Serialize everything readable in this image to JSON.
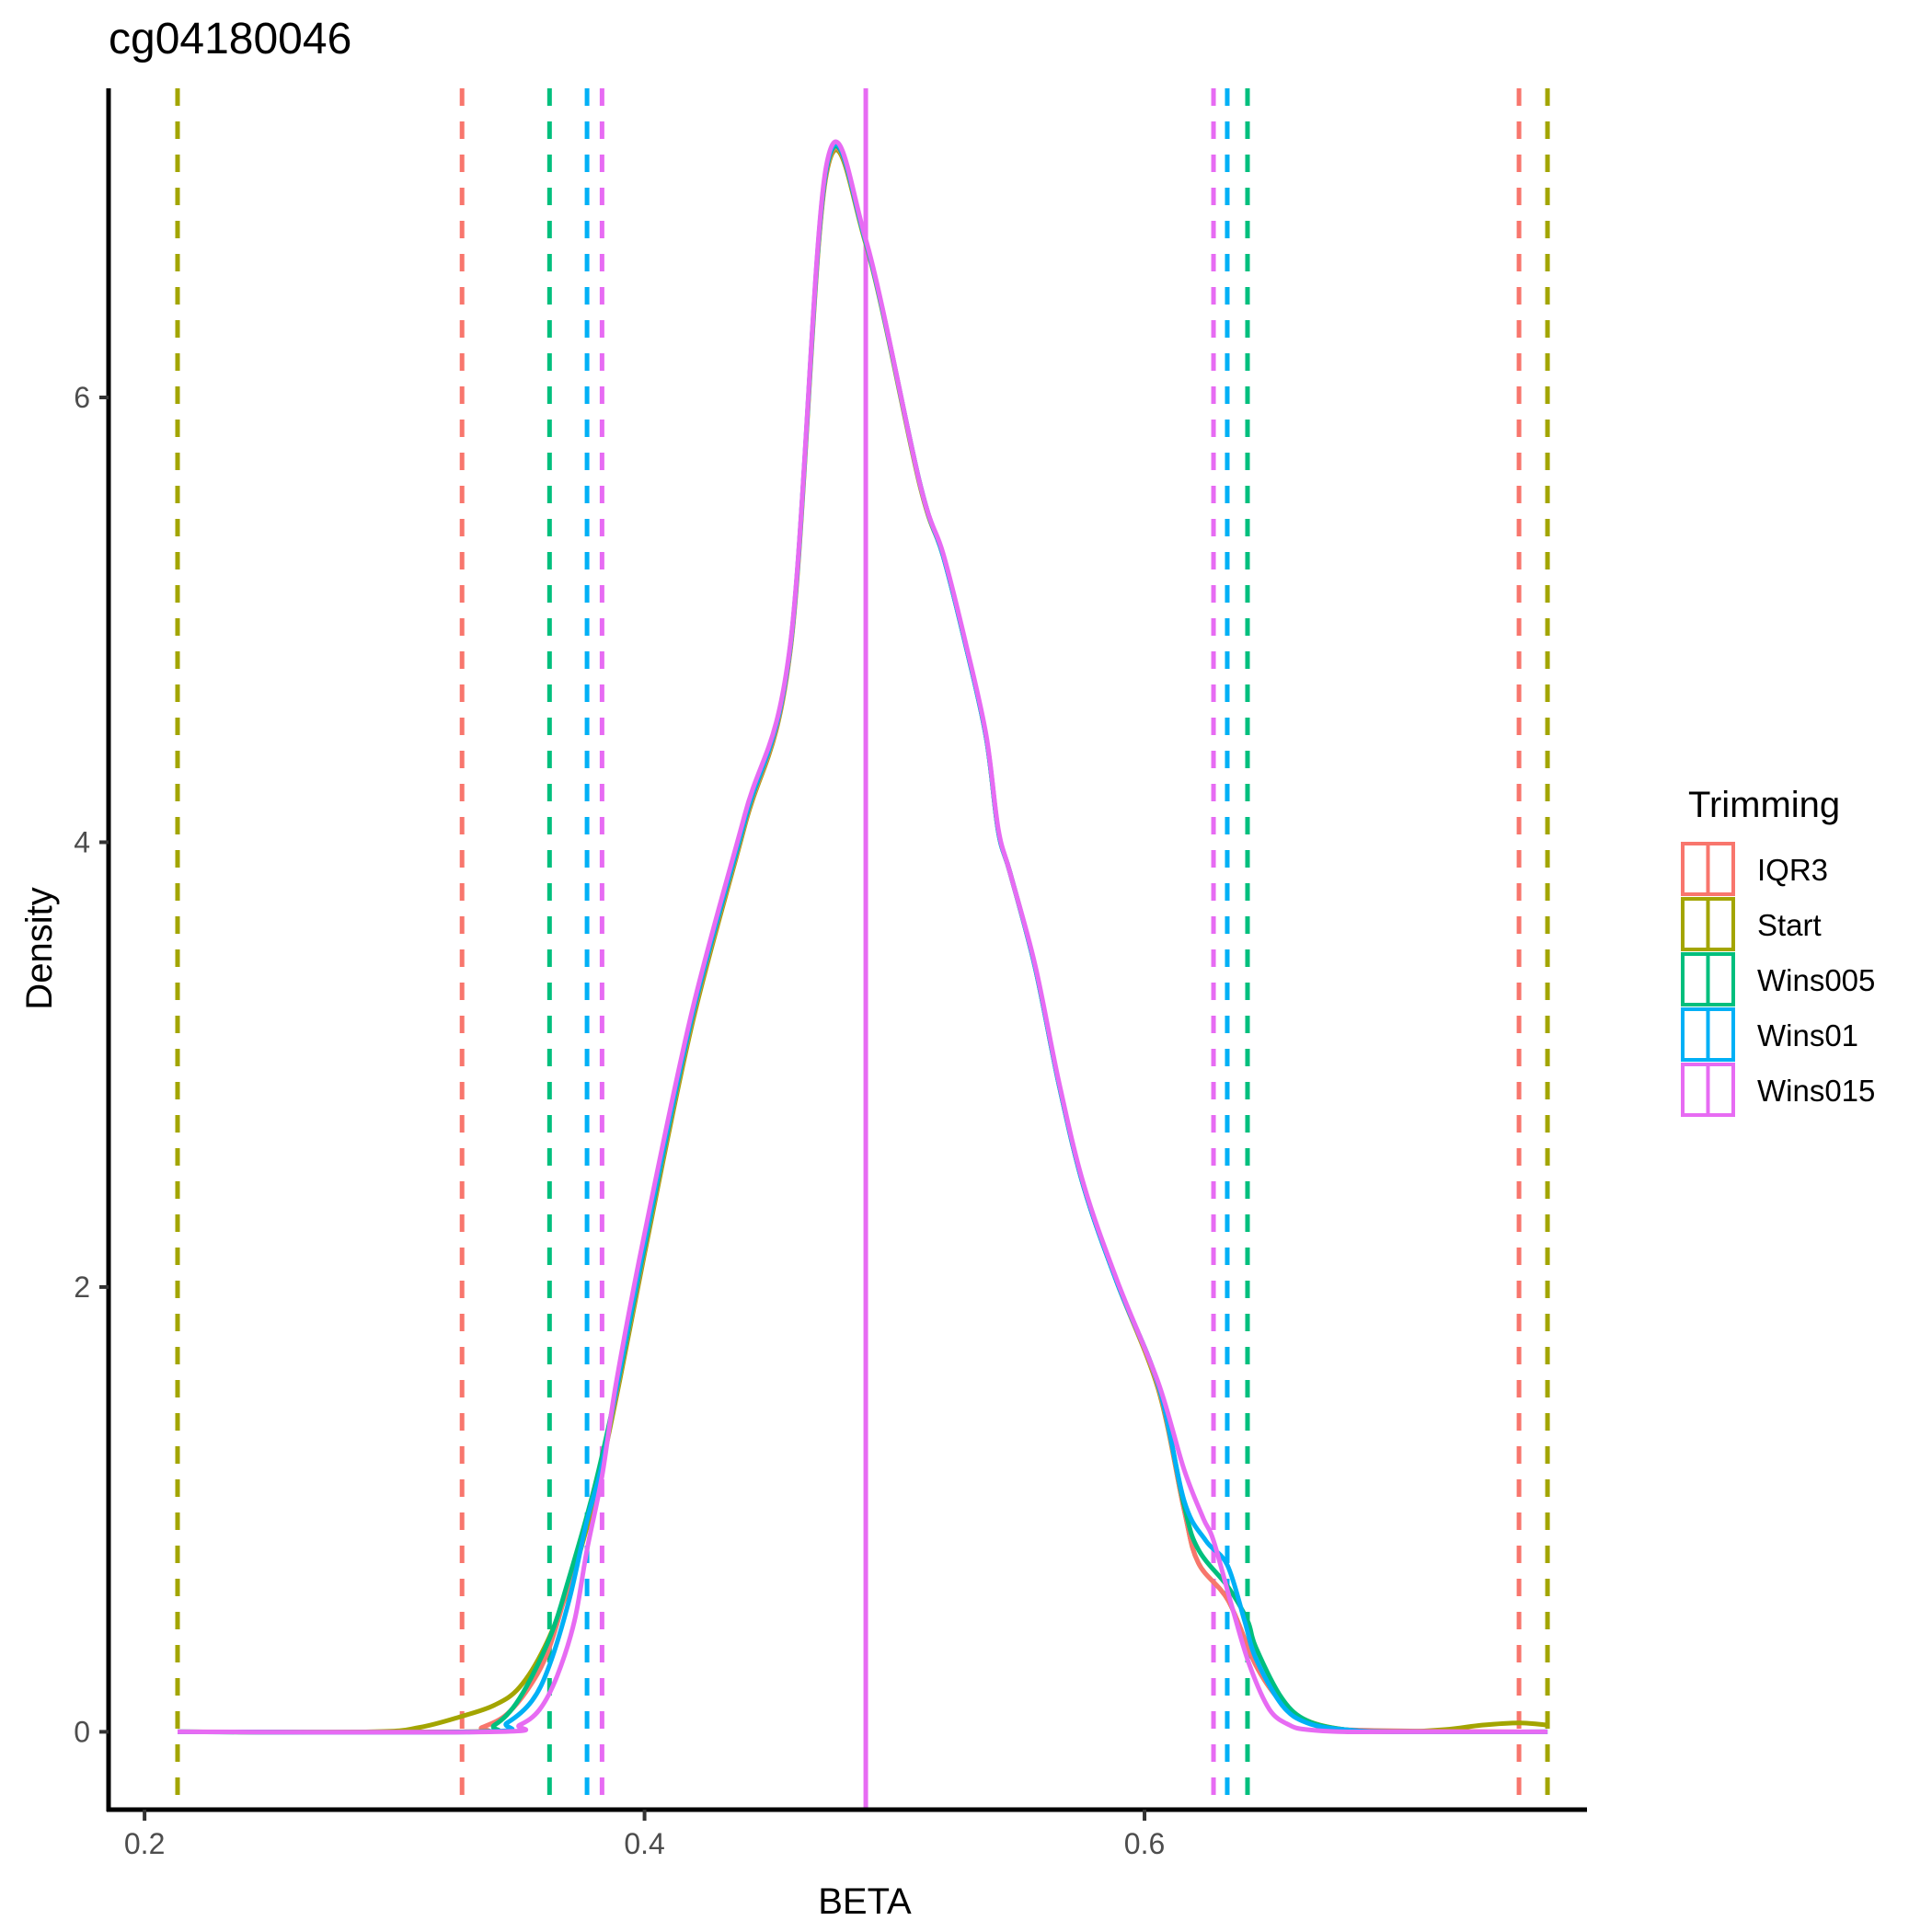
{
  "chart_data": {
    "type": "line",
    "subtype": "density",
    "title": "cg04180046",
    "xlabel": "BETA",
    "ylabel": "Density",
    "xlim": [
      0.1856,
      0.777
    ],
    "ylim": [
      -0.35,
      7.39
    ],
    "x_ticks": [
      0.2,
      0.4,
      0.6
    ],
    "x_tick_labels": [
      "0.2",
      "0.4",
      "0.6"
    ],
    "y_ticks": [
      0,
      2,
      4,
      6
    ],
    "y_tick_labels": [
      "0",
      "2",
      "4",
      "6"
    ],
    "grid": false,
    "legend": {
      "title": "Trimming",
      "position": "right",
      "entries": [
        "IQR3",
        "Start",
        "Wins005",
        "Wins01",
        "Wins015"
      ]
    },
    "colors": {
      "IQR3": "#F8766D",
      "Start": "#A3A500",
      "Wins005": "#00BF7D",
      "Wins01": "#00B0F6",
      "Wins015": "#E76BF3"
    },
    "series": [
      {
        "name": "Start",
        "x": [
          0.2132,
          0.29,
          0.31,
          0.327,
          0.34,
          0.35,
          0.36,
          0.37,
          0.38,
          0.389,
          0.4,
          0.419,
          0.44,
          0.4583,
          0.4727,
          0.4885,
          0.51,
          0.5194,
          0.5286,
          0.5367,
          0.5415,
          0.5463,
          0.5562,
          0.5658,
          0.5757,
          0.589,
          0.6055,
          0.6158,
          0.6215,
          0.6335,
          0.6445,
          0.655,
          0.665,
          0.68,
          0.7,
          0.72,
          0.735,
          0.75,
          0.7612
        ],
        "y": [
          0,
          0,
          0.02,
          0.07,
          0.12,
          0.2,
          0.38,
          0.66,
          1.05,
          1.52,
          2.15,
          3.18,
          4.07,
          4.86,
          7.0,
          6.69,
          5.61,
          5.29,
          4.88,
          4.47,
          4.05,
          3.86,
          3.44,
          2.91,
          2.45,
          2.02,
          1.54,
          1.0,
          0.76,
          0.59,
          0.3,
          0.13,
          0.05,
          0.01,
          0,
          0.01,
          0.03,
          0.04,
          0.03
        ]
      },
      {
        "name": "IQR3",
        "x": [
          0.2132,
          0.327,
          0.335,
          0.345,
          0.355,
          0.362,
          0.37,
          0.38,
          0.389,
          0.4,
          0.419,
          0.44,
          0.4583,
          0.4727,
          0.4885,
          0.51,
          0.5194,
          0.5286,
          0.5367,
          0.5415,
          0.5463,
          0.5562,
          0.5658,
          0.5757,
          0.589,
          0.6055,
          0.6158,
          0.6215,
          0.6335,
          0.6445,
          0.655,
          0.665,
          0.68,
          0.7498
        ],
        "y": [
          0,
          0,
          0.02,
          0.08,
          0.22,
          0.38,
          0.68,
          1.08,
          1.54,
          2.17,
          3.2,
          4.08,
          4.87,
          7.01,
          6.7,
          5.62,
          5.29,
          4.88,
          4.47,
          4.05,
          3.86,
          3.44,
          2.91,
          2.45,
          2.02,
          1.55,
          1.0,
          0.76,
          0.59,
          0.3,
          0.13,
          0.05,
          0.01,
          0
        ]
      },
      {
        "name": "Wins005",
        "x": [
          0.2132,
          0.33,
          0.34,
          0.35,
          0.362,
          0.37,
          0.38,
          0.389,
          0.4,
          0.419,
          0.44,
          0.4583,
          0.4727,
          0.4885,
          0.51,
          0.5194,
          0.5286,
          0.5367,
          0.5415,
          0.5463,
          0.5562,
          0.5658,
          0.5757,
          0.589,
          0.6055,
          0.6158,
          0.6215,
          0.6335,
          0.6412,
          0.6445,
          0.655,
          0.665,
          0.68,
          0.7,
          0.7612
        ],
        "y": [
          0,
          0,
          0.03,
          0.15,
          0.42,
          0.7,
          1.1,
          1.55,
          2.18,
          3.21,
          4.09,
          4.88,
          7.02,
          6.7,
          5.62,
          5.29,
          4.88,
          4.47,
          4.05,
          3.86,
          3.44,
          2.91,
          2.45,
          2.02,
          1.56,
          1.02,
          0.82,
          0.65,
          0.5,
          0.38,
          0.15,
          0.05,
          0.01,
          0,
          0
        ]
      },
      {
        "name": "Wins01",
        "x": [
          0.2132,
          0.335,
          0.345,
          0.355,
          0.362,
          0.37,
          0.377,
          0.383,
          0.389,
          0.4,
          0.419,
          0.44,
          0.4583,
          0.4727,
          0.4885,
          0.51,
          0.5194,
          0.5286,
          0.5367,
          0.5415,
          0.5463,
          0.5562,
          0.5658,
          0.5757,
          0.589,
          0.6055,
          0.6158,
          0.6245,
          0.6331,
          0.64,
          0.6445,
          0.655,
          0.665,
          0.68,
          0.7,
          0.7612
        ],
        "y": [
          0,
          0,
          0.04,
          0.14,
          0.3,
          0.6,
          0.95,
          1.2,
          1.56,
          2.2,
          3.22,
          4.1,
          4.88,
          7.03,
          6.7,
          5.62,
          5.29,
          4.88,
          4.47,
          4.05,
          3.86,
          3.44,
          2.91,
          2.45,
          2.02,
          1.56,
          1.04,
          0.86,
          0.75,
          0.5,
          0.33,
          0.12,
          0.04,
          0.01,
          0,
          0
        ]
      },
      {
        "name": "Wins015",
        "x": [
          0.2132,
          0.34,
          0.35,
          0.358,
          0.365,
          0.372,
          0.377,
          0.383,
          0.3888,
          0.4,
          0.419,
          0.44,
          0.4583,
          0.4727,
          0.4885,
          0.51,
          0.5194,
          0.5286,
          0.5367,
          0.5415,
          0.5463,
          0.5562,
          0.5658,
          0.5757,
          0.589,
          0.6055,
          0.6158,
          0.6235,
          0.6276,
          0.6353,
          0.642,
          0.65,
          0.658,
          0.665,
          0.68,
          0.7,
          0.7612
        ],
        "y": [
          0,
          0,
          0.03,
          0.1,
          0.25,
          0.5,
          0.82,
          1.15,
          1.58,
          2.24,
          3.24,
          4.12,
          4.89,
          7.04,
          6.71,
          5.62,
          5.3,
          4.89,
          4.48,
          4.06,
          3.86,
          3.45,
          2.92,
          2.46,
          2.03,
          1.57,
          1.18,
          0.96,
          0.86,
          0.55,
          0.3,
          0.1,
          0.03,
          0.01,
          0,
          0,
          0
        ]
      }
    ],
    "vlines": [
      {
        "series": "Start",
        "x": 0.2132,
        "style": "dashed"
      },
      {
        "series": "IQR3",
        "x": 0.327,
        "style": "dashed"
      },
      {
        "series": "Wins005",
        "x": 0.362,
        "style": "dashed"
      },
      {
        "series": "Wins01",
        "x": 0.377,
        "style": "dashed"
      },
      {
        "series": "Wins015",
        "x": 0.383,
        "style": "dashed"
      },
      {
        "series": "Wins015",
        "x": 0.4885,
        "style": "solid"
      },
      {
        "series": "Wins015",
        "x": 0.6276,
        "style": "dashed"
      },
      {
        "series": "Wins01",
        "x": 0.6331,
        "style": "dashed"
      },
      {
        "series": "Wins005",
        "x": 0.6412,
        "style": "dashed"
      },
      {
        "series": "IQR3",
        "x": 0.7498,
        "style": "dashed"
      },
      {
        "series": "Start",
        "x": 0.7612,
        "style": "dashed"
      }
    ]
  }
}
